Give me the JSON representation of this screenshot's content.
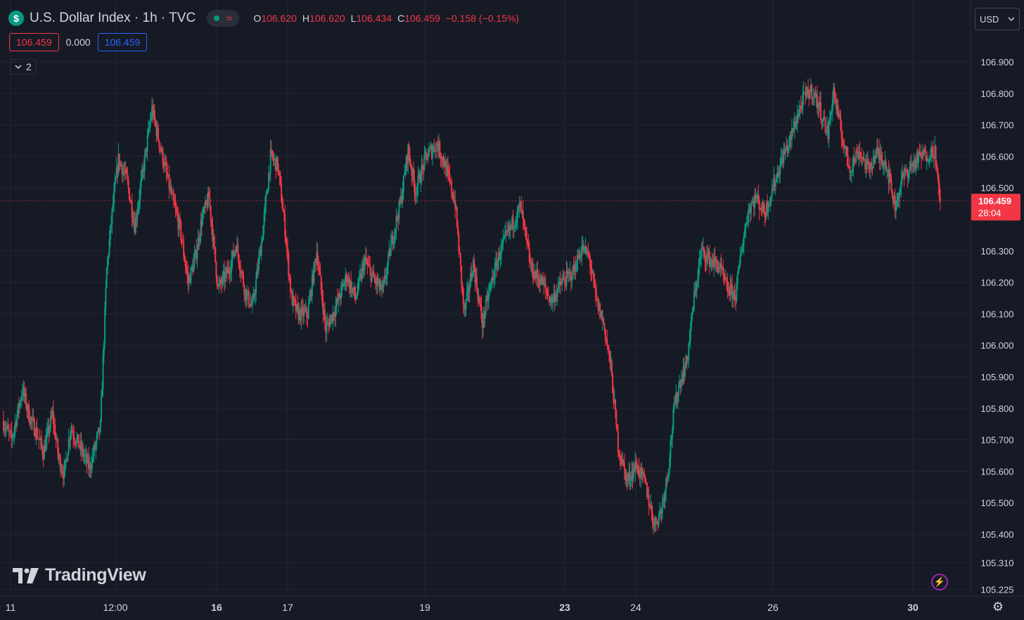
{
  "header": {
    "symbol_icon": "$",
    "title": "U.S. Dollar Index · 1h · TVC",
    "market_status_icon": "market-open-dot-icon",
    "wave_icon": "≈",
    "ohlc": {
      "o_label": "O",
      "o": "106.620",
      "h_label": "H",
      "h": "106.620",
      "l_label": "L",
      "l": "106.434",
      "c_label": "C",
      "c": "106.459",
      "change": "−0.158 (−0.15%)"
    }
  },
  "price_row": {
    "bid": "106.459",
    "spread": "0.000",
    "ask": "106.459"
  },
  "indicators_toggle": {
    "count": "2"
  },
  "currency_button": {
    "label": "USD"
  },
  "branding": {
    "text": "TradingView"
  },
  "colors": {
    "up": "#089981",
    "down": "#f23645",
    "background": "#161a25",
    "grid": "#232632",
    "text": "#d1d4dc",
    "ask": "#2962ff"
  },
  "chart_data": {
    "type": "candlestick",
    "title": "U.S. Dollar Index · 1h · TVC",
    "ylim": [
      105.225,
      106.98
    ],
    "y_ticks": [
      "106.900",
      "106.800",
      "106.700",
      "106.600",
      "106.500",
      "106.300",
      "106.200",
      "106.100",
      "106.000",
      "105.900",
      "105.800",
      "105.700",
      "105.600",
      "105.500",
      "105.400",
      "105.310",
      "105.225"
    ],
    "x_ticks": [
      {
        "label": "11",
        "bold": false
      },
      {
        "label": "12:00",
        "bold": false
      },
      {
        "label": "16",
        "bold": true
      },
      {
        "label": "17",
        "bold": false
      },
      {
        "label": "19",
        "bold": false
      },
      {
        "label": "23",
        "bold": true
      },
      {
        "label": "24",
        "bold": false
      },
      {
        "label": "26",
        "bold": false
      },
      {
        "label": "30",
        "bold": true
      }
    ],
    "last_price": {
      "value": 106.459,
      "label": "106.459",
      "countdown": "28:04"
    },
    "grid": true,
    "path_keypoints": [
      [
        0,
        105.76
      ],
      [
        10,
        105.7
      ],
      [
        22,
        105.86
      ],
      [
        30,
        105.77
      ],
      [
        38,
        105.72
      ],
      [
        45,
        105.66
      ],
      [
        55,
        105.78
      ],
      [
        62,
        105.64
      ],
      [
        68,
        105.59
      ],
      [
        75,
        105.74
      ],
      [
        85,
        105.68
      ],
      [
        96,
        105.61
      ],
      [
        108,
        105.74
      ],
      [
        115,
        106.24
      ],
      [
        122,
        106.45
      ],
      [
        128,
        106.59
      ],
      [
        137,
        106.53
      ],
      [
        146,
        106.38
      ],
      [
        156,
        106.57
      ],
      [
        165,
        106.75
      ],
      [
        175,
        106.62
      ],
      [
        186,
        106.48
      ],
      [
        196,
        106.37
      ],
      [
        205,
        106.2
      ],
      [
        213,
        106.28
      ],
      [
        220,
        106.4
      ],
      [
        228,
        106.47
      ],
      [
        238,
        106.18
      ],
      [
        250,
        106.24
      ],
      [
        258,
        106.32
      ],
      [
        268,
        106.17
      ],
      [
        276,
        106.12
      ],
      [
        287,
        106.35
      ],
      [
        296,
        106.6
      ],
      [
        304,
        106.57
      ],
      [
        312,
        106.37
      ],
      [
        319,
        106.15
      ],
      [
        326,
        106.1
      ],
      [
        337,
        106.1
      ],
      [
        347,
        106.3
      ],
      [
        357,
        106.05
      ],
      [
        368,
        106.12
      ],
      [
        380,
        106.22
      ],
      [
        390,
        106.15
      ],
      [
        400,
        106.27
      ],
      [
        410,
        106.21
      ],
      [
        420,
        106.17
      ],
      [
        430,
        106.33
      ],
      [
        440,
        106.46
      ],
      [
        448,
        106.62
      ],
      [
        456,
        106.49
      ],
      [
        468,
        106.6
      ],
      [
        480,
        106.64
      ],
      [
        488,
        106.58
      ],
      [
        500,
        106.45
      ],
      [
        510,
        106.1
      ],
      [
        520,
        106.26
      ],
      [
        530,
        106.07
      ],
      [
        540,
        106.2
      ],
      [
        550,
        106.3
      ],
      [
        562,
        106.38
      ],
      [
        572,
        106.44
      ],
      [
        584,
        106.24
      ],
      [
        596,
        106.2
      ],
      [
        606,
        106.14
      ],
      [
        618,
        106.2
      ],
      [
        630,
        106.23
      ],
      [
        640,
        106.31
      ],
      [
        648,
        106.28
      ],
      [
        656,
        106.14
      ],
      [
        664,
        106.07
      ],
      [
        672,
        105.93
      ],
      [
        680,
        105.68
      ],
      [
        690,
        105.57
      ],
      [
        700,
        105.62
      ],
      [
        710,
        105.56
      ],
      [
        720,
        105.43
      ],
      [
        728,
        105.48
      ],
      [
        735,
        105.6
      ],
      [
        742,
        105.8
      ],
      [
        748,
        105.88
      ],
      [
        756,
        105.95
      ],
      [
        764,
        106.15
      ],
      [
        772,
        106.3
      ],
      [
        782,
        106.27
      ],
      [
        792,
        106.25
      ],
      [
        800,
        106.18
      ],
      [
        810,
        106.16
      ],
      [
        816,
        106.3
      ],
      [
        824,
        106.43
      ],
      [
        832,
        106.47
      ],
      [
        842,
        106.42
      ],
      [
        852,
        106.51
      ],
      [
        862,
        106.6
      ],
      [
        870,
        106.65
      ],
      [
        878,
        106.73
      ],
      [
        886,
        106.79
      ],
      [
        894,
        106.81
      ],
      [
        902,
        106.76
      ],
      [
        912,
        106.67
      ],
      [
        918,
        106.81
      ],
      [
        926,
        106.68
      ],
      [
        936,
        106.56
      ],
      [
        946,
        106.62
      ],
      [
        956,
        106.56
      ],
      [
        966,
        106.61
      ],
      [
        976,
        106.58
      ],
      [
        986,
        106.44
      ],
      [
        994,
        106.53
      ],
      [
        1004,
        106.57
      ],
      [
        1014,
        106.6
      ],
      [
        1024,
        106.61
      ],
      [
        1030,
        106.62
      ],
      [
        1035,
        106.459
      ]
    ],
    "candle_count": 1036,
    "seed": 7
  }
}
